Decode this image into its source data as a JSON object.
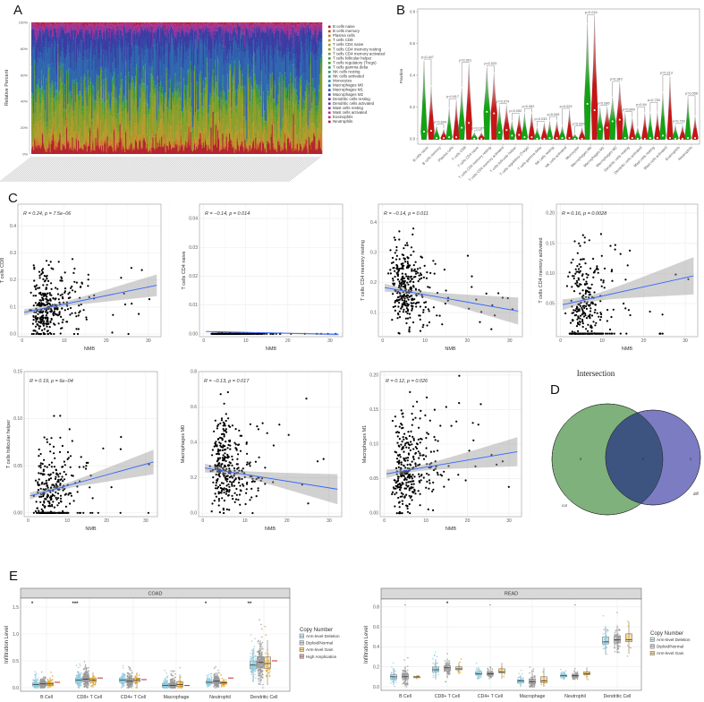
{
  "panel_labels": {
    "A": "A",
    "B": "B",
    "C": "C",
    "D": "D",
    "E": "E"
  },
  "chart_data": [
    {
      "id": "A",
      "type": "bar",
      "stacked": true,
      "ylabel": "Relative Percent",
      "yticks": [
        "0%",
        "20%",
        "40%",
        "60%",
        "80%",
        "100%"
      ],
      "ylim": [
        0,
        100
      ],
      "n_samples": 300,
      "legend_position": "right",
      "cell_types": [
        {
          "name": "B cells naive",
          "color": "#b3242e",
          "mean_fraction": 0.06
        },
        {
          "name": "B cells memory",
          "color": "#c8462a",
          "mean_fraction": 0.01
        },
        {
          "name": "Plasma cells",
          "color": "#d07a2c",
          "mean_fraction": 0.02
        },
        {
          "name": "T cells CD8",
          "color": "#b59a2c",
          "mean_fraction": 0.1
        },
        {
          "name": "T cells CD4 naive",
          "color": "#a6a22a",
          "mean_fraction": 0.002
        },
        {
          "name": "T cells CD4 memory resting",
          "color": "#8c9f2c",
          "mean_fraction": 0.17
        },
        {
          "name": "T cells CD4 memory activated",
          "color": "#6d9d2f",
          "mean_fraction": 0.06
        },
        {
          "name": "T cells follicular helper",
          "color": "#4f9a33",
          "mean_fraction": 0.03
        },
        {
          "name": "T cells regulatory (Tregs)",
          "color": "#3a973c",
          "mean_fraction": 0.02
        },
        {
          "name": "T cells gamma delta",
          "color": "#2f9652",
          "mean_fraction": 0.005
        },
        {
          "name": "NK cells resting",
          "color": "#2e9670",
          "mean_fraction": 0.01
        },
        {
          "name": "NK cells activated",
          "color": "#2e958e",
          "mean_fraction": 0.01
        },
        {
          "name": "Monocytes",
          "color": "#2f86a6",
          "mean_fraction": 0.005
        },
        {
          "name": "Macrophages M0",
          "color": "#2f67ad",
          "mean_fraction": 0.24
        },
        {
          "name": "Macrophages M1",
          "color": "#3050aa",
          "mean_fraction": 0.07
        },
        {
          "name": "Macrophages M2",
          "color": "#3a3ca2",
          "mean_fraction": 0.12
        },
        {
          "name": "Dendritic cells resting",
          "color": "#5637a3",
          "mean_fraction": 0.01
        },
        {
          "name": "Dendritic cells activated",
          "color": "#7335a3",
          "mean_fraction": 0.01
        },
        {
          "name": "Mast cells resting",
          "color": "#92339d",
          "mean_fraction": 0.02
        },
        {
          "name": "Mast cells activated",
          "color": "#aa318c",
          "mean_fraction": 0.03
        },
        {
          "name": "Eosinophils",
          "color": "#c02f6c",
          "mean_fraction": 0.002
        },
        {
          "name": "Neutrophils",
          "color": "#b0203e",
          "mean_fraction": 0.01
        }
      ]
    },
    {
      "id": "B",
      "type": "violin",
      "ylabel": "Fraction",
      "ylim": [
        0,
        0.8
      ],
      "yticks": [
        "0.0",
        "0.2",
        "0.4",
        "0.6",
        "0.8"
      ],
      "group_colors": [
        "#12a312",
        "#c81414"
      ],
      "categories": [
        "B cells naive",
        "B cells memory",
        "Plasma cells",
        "T cells CD8",
        "T cells CD4 naive",
        "T cells CD4 memory resting",
        "T cells CD4 memory activated",
        "T cells follicular helper",
        "T cells regulatory (Tregs)",
        "T cells gamma delta",
        "NK cells resting",
        "NK cells activated",
        "Monocytes",
        "Macrophages M0",
        "Macrophages M1",
        "Macrophages M2",
        "Dendritic cells resting",
        "Dendritic cells activated",
        "Mast cells resting",
        "Mast cells activated",
        "Eosinophils",
        "Neutrophils"
      ],
      "pvalues": [
        "p=0.447",
        "p=0.604",
        "p=0.617",
        "p=0.001",
        "p=0.187",
        "p=0.023",
        "p=0.079",
        "p=0.052",
        "p=0.082",
        "p=0.033",
        "p=0.945",
        "p=0.029",
        "p=0.090",
        "p=0.016",
        "p=0.086",
        "p=0.343",
        "p=0.849",
        "p=0.84",
        "p=0.783",
        "p=0.213",
        "p=0.792",
        "p=0.058"
      ],
      "group1_max": [
        0.49,
        0.08,
        0.19,
        0.32,
        0.04,
        0.45,
        0.21,
        0.11,
        0.16,
        0.07,
        0.11,
        0.08,
        0.03,
        0.72,
        0.2,
        0.26,
        0.16,
        0.07,
        0.165,
        0.29,
        0.085,
        0.26
      ],
      "group2_max": [
        0.33,
        0.06,
        0.24,
        0.47,
        0.04,
        0.41,
        0.21,
        0.15,
        0.16,
        0.1,
        0.11,
        0.18,
        0.07,
        0.77,
        0.2,
        0.35,
        0.13,
        0.16,
        0.165,
        0.39,
        0.085,
        0.14
      ],
      "group1_median": [
        0.045,
        0.005,
        0.01,
        0.07,
        0.0,
        0.17,
        0.04,
        0.02,
        0.01,
        0.0,
        0.005,
        0.005,
        0.0,
        0.22,
        0.06,
        0.11,
        0.005,
        0.0,
        0.005,
        0.02,
        0.0,
        0.005
      ],
      "group2_median": [
        0.05,
        0.005,
        0.01,
        0.1,
        0.0,
        0.16,
        0.055,
        0.025,
        0.01,
        0.0,
        0.005,
        0.005,
        0.0,
        0.18,
        0.07,
        0.12,
        0.005,
        0.0,
        0.005,
        0.005,
        0.0,
        0.005
      ]
    },
    {
      "id": "C1",
      "type": "scatter",
      "xlabel": "NMB",
      "ylabel": "T cells CD8",
      "label": "R = 0.24, p = 7.5e−06",
      "xlim": [
        -1,
        33
      ],
      "xticks": [
        0,
        10,
        20,
        30
      ],
      "ylim": [
        -0.01,
        0.48
      ],
      "yticks": [
        "0.0",
        "0.1",
        "0.2",
        "0.3",
        "0.4"
      ],
      "ytick_values": [
        0,
        0.1,
        0.2,
        0.3,
        0.4
      ],
      "fit": [
        0.08,
        0.18
      ],
      "ci_end": 0.04,
      "y_mean": 0.1,
      "y_sd": 0.07,
      "zero_frac": 0.02,
      "n": 330
    },
    {
      "id": "C2",
      "type": "scatter",
      "xlabel": "NMB",
      "ylabel": "T cells CD4 naive",
      "label": "R = −0.14, p = 0.014",
      "xlim": [
        -1,
        33
      ],
      "xticks": [
        0,
        10,
        20,
        30
      ],
      "ylim": [
        -0.001,
        0.045
      ],
      "yticks": [
        "0.00",
        "0.01",
        "0.02",
        "0.03",
        "0.04"
      ],
      "ytick_values": [
        0,
        0.01,
        0.02,
        0.03,
        0.04
      ],
      "fit": [
        0.0008,
        -0.0002
      ],
      "ci_end": 0.0004,
      "y_mean": 0.0,
      "y_sd": 0.0002,
      "zero_frac": 0.95,
      "n": 330
    },
    {
      "id": "C3",
      "type": "scatter",
      "xlabel": "NMB",
      "ylabel": "T cells CD4 memory resting",
      "label": "R = −0.14, p = 0.011",
      "xlim": [
        -1,
        33
      ],
      "xticks": [
        0,
        10,
        20,
        30
      ],
      "ylim": [
        0.02,
        0.46
      ],
      "yticks": [
        "0.1",
        "0.2",
        "0.3",
        "0.4"
      ],
      "ytick_values": [
        0.1,
        0.2,
        0.3,
        0.4
      ],
      "fit": [
        0.183,
        0.105
      ],
      "ci_end": 0.045,
      "y_mean": 0.175,
      "y_sd": 0.07,
      "zero_frac": 0.0,
      "n": 330
    },
    {
      "id": "C4",
      "type": "scatter",
      "xlabel": "NMB",
      "ylabel": "T cells CD4 memory activated",
      "label": "R = 0.16, p = 0.0028",
      "xlim": [
        -1,
        33
      ],
      "xticks": [
        0,
        10,
        20,
        30
      ],
      "ylim": [
        -0.005,
        0.215
      ],
      "yticks": [
        "0.05",
        "0.10",
        "0.15",
        "0.20"
      ],
      "ytick_values": [
        0.05,
        0.1,
        0.15,
        0.2
      ],
      "fit": [
        0.048,
        0.096
      ],
      "ci_end": 0.031,
      "y_mean": 0.05,
      "y_sd": 0.05,
      "zero_frac": 0.25,
      "n": 330
    },
    {
      "id": "C5",
      "type": "scatter",
      "xlabel": "NMB",
      "ylabel": "T cells follicular helper",
      "label": "R = 0.19, p = 6e−04",
      "xlim": [
        -1,
        33
      ],
      "xticks": [
        0,
        10,
        20,
        30
      ],
      "ylim": [
        -0.004,
        0.15
      ],
      "yticks": [
        "0.00",
        "0.05",
        "0.10",
        "0.15"
      ],
      "ytick_values": [
        0,
        0.05,
        0.1,
        0.15
      ],
      "fit": [
        0.018,
        0.054
      ],
      "ci_end": 0.013,
      "y_mean": 0.028,
      "y_sd": 0.022,
      "zero_frac": 0.3,
      "n": 330
    },
    {
      "id": "C6",
      "type": "scatter",
      "xlabel": "NMB",
      "ylabel": "Macrophages M0",
      "label": "R = −0.13, p = 0.017",
      "xlim": [
        -1,
        33
      ],
      "xticks": [
        0,
        10,
        20,
        30
      ],
      "ylim": [
        -0.02,
        0.8
      ],
      "yticks": [
        "0.0",
        "0.2",
        "0.4",
        "0.6",
        "0.8"
      ],
      "ytick_values": [
        0,
        0.2,
        0.4,
        0.6,
        0.8
      ],
      "fit": [
        0.255,
        0.135
      ],
      "ci_end": 0.085,
      "y_mean": 0.24,
      "y_sd": 0.14,
      "zero_frac": 0.0,
      "n": 330
    },
    {
      "id": "C7",
      "type": "scatter",
      "xlabel": "NMB",
      "ylabel": "Macrophages M1",
      "label": "R = 0.12, p = 0.026",
      "xlim": [
        -1,
        33
      ],
      "xticks": [
        0,
        10,
        20,
        30
      ],
      "ylim": [
        -0.005,
        0.205
      ],
      "yticks": [
        "0.00",
        "0.05",
        "0.10",
        "0.15",
        "0.20"
      ],
      "ytick_values": [
        0,
        0.05,
        0.1,
        0.15,
        0.2
      ],
      "fit": [
        0.057,
        0.089
      ],
      "ci_end": 0.021,
      "y_mean": 0.062,
      "y_sd": 0.038,
      "zero_frac": 0.0,
      "n": 330
    },
    {
      "id": "D",
      "type": "venn",
      "title": "Intersection",
      "sets": [
        {
          "name": "cor",
          "only": "4",
          "color": "#7fb17c"
        },
        {
          "name": "diff",
          "only": "1",
          "color": "#7b7cc2"
        }
      ],
      "intersection": "5",
      "intersection_color": "#3d5480"
    },
    {
      "id": "E1",
      "type": "box",
      "strip": "COAD",
      "ylabel": "Infiltration Level",
      "ylim": [
        0,
        1.6
      ],
      "yticks": [
        "0.0",
        "0.5",
        "1.0",
        "1.5"
      ],
      "ytick_values": [
        0,
        0.5,
        1.0,
        1.5
      ],
      "categories": [
        "B Cell",
        "CD8+ T Cell",
        "CD4+ T Cell",
        "Macrophage",
        "Neutrophil",
        "Dendritic Cell"
      ],
      "significance": [
        "*",
        "***",
        "",
        "",
        "*",
        "**"
      ],
      "legend_title": "Copy Number",
      "groups": [
        {
          "name": "Arm-level Deletion",
          "color": "#8ecde2",
          "n": 100,
          "q": [
            [
              0.03,
              0.06,
              0.09
            ],
            [
              0.1,
              0.14,
              0.18
            ],
            [
              0.1,
              0.14,
              0.17
            ],
            [
              0.01,
              0.04,
              0.08
            ],
            [
              0.08,
              0.1,
              0.12
            ],
            [
              0.35,
              0.42,
              0.5
            ]
          ]
        },
        {
          "name": "Diploid/Normal",
          "color": "#9a9a9a",
          "n": 180,
          "q": [
            [
              0.04,
              0.07,
              0.1
            ],
            [
              0.11,
              0.16,
              0.21
            ],
            [
              0.09,
              0.12,
              0.16
            ],
            [
              0.01,
              0.04,
              0.08
            ],
            [
              0.08,
              0.12,
              0.15
            ],
            [
              0.38,
              0.47,
              0.58
            ]
          ]
        },
        {
          "name": "Arm-level Gain",
          "color": "#f0a000",
          "n": 25,
          "q": [
            [
              0.04,
              0.07,
              0.1
            ],
            [
              0.11,
              0.14,
              0.18
            ],
            [
              0.11,
              0.14,
              0.18
            ],
            [
              0.02,
              0.06,
              0.11
            ],
            [
              0.07,
              0.09,
              0.11
            ],
            [
              0.36,
              0.45,
              0.57
            ]
          ]
        },
        {
          "name": "High Amplication",
          "color": "#c0282e",
          "n": 1,
          "q": [
            [
              0.1,
              0.1,
              0.1
            ],
            [
              0.18,
              0.18,
              0.18
            ],
            [
              0.15,
              0.15,
              0.15
            ],
            [
              0.04,
              0.04,
              0.04
            ],
            [
              0.18,
              0.18,
              0.18
            ],
            [
              0.5,
              0.5,
              0.5
            ]
          ]
        }
      ]
    },
    {
      "id": "E2",
      "type": "box",
      "strip": "READ",
      "ylabel": "Infiltration Level",
      "ylim": [
        0,
        0.85
      ],
      "yticks": [
        "0.0",
        "0.2",
        "0.4",
        "0.6",
        "0.8"
      ],
      "ytick_values": [
        0,
        0.2,
        0.4,
        0.6,
        0.8
      ],
      "categories": [
        "B Cell",
        "CD8+ T Cell",
        "CD4+ T Cell",
        "Macrophage",
        "Neutrophil",
        "Dendritic Cell"
      ],
      "significance": [
        ".",
        "*",
        ".",
        "",
        ".",
        ""
      ],
      "legend_title": "Copy Number",
      "groups": [
        {
          "name": "Arm-level Deletion",
          "color": "#8ecde2",
          "n": 45,
          "q": [
            [
              0.08,
              0.1,
              0.12
            ],
            [
              0.15,
              0.17,
              0.2
            ],
            [
              0.12,
              0.13,
              0.15
            ],
            [
              0.04,
              0.06,
              0.07
            ],
            [
              0.1,
              0.11,
              0.12
            ],
            [
              0.43,
              0.45,
              0.5
            ]
          ]
        },
        {
          "name": "Diploid/Normal",
          "color": "#9a9a9a",
          "n": 70,
          "q": [
            [
              0.08,
              0.1,
              0.13
            ],
            [
              0.16,
              0.19,
              0.21
            ],
            [
              0.12,
              0.13,
              0.14
            ],
            [
              0.03,
              0.05,
              0.08
            ],
            [
              0.1,
              0.11,
              0.12
            ],
            [
              0.44,
              0.47,
              0.51
            ]
          ]
        },
        {
          "name": "Arm-level Gain",
          "color": "#f0a000",
          "n": 7,
          "q": [
            [
              0.09,
              0.1,
              0.1
            ],
            [
              0.17,
              0.18,
              0.2
            ],
            [
              0.14,
              0.15,
              0.18
            ],
            [
              0.04,
              0.06,
              0.1
            ],
            [
              0.12,
              0.13,
              0.15
            ],
            [
              0.45,
              0.47,
              0.53
            ]
          ]
        }
      ]
    }
  ]
}
